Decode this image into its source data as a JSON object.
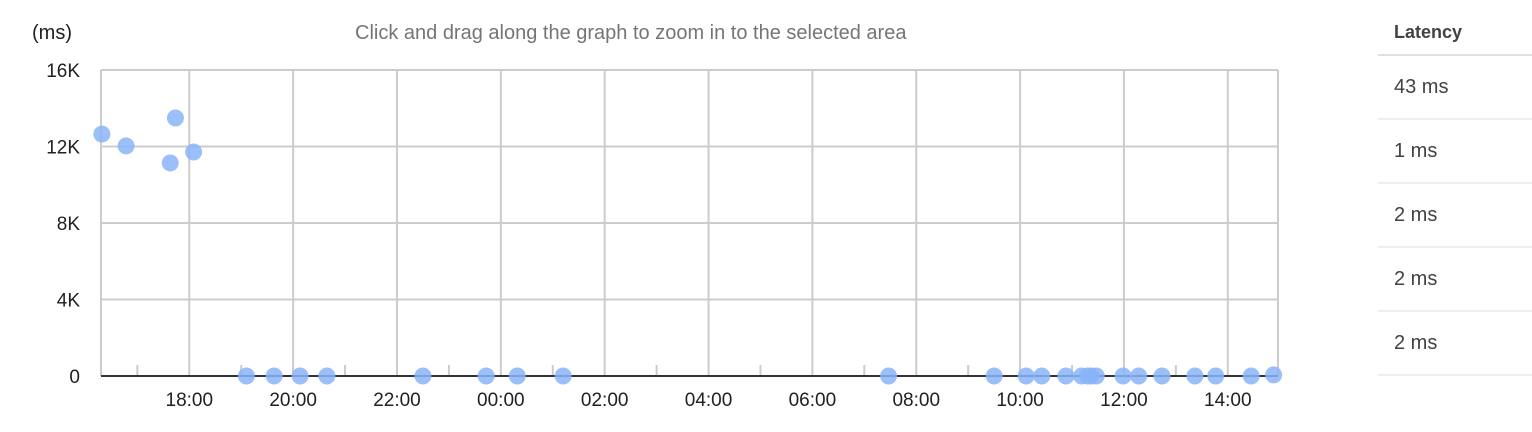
{
  "hint": "Click and drag along the graph to zoom in to the selected area",
  "table": {
    "header": "Latency",
    "rows": [
      "43 ms",
      "1 ms",
      "2 ms",
      "2 ms",
      "2 ms"
    ]
  },
  "chart_data": {
    "type": "scatter",
    "ylabel": "(ms)",
    "ylim": [
      0,
      16000
    ],
    "yticks": [
      {
        "v": 0,
        "label": "0"
      },
      {
        "v": 4000,
        "label": "4K"
      },
      {
        "v": 8000,
        "label": "8K"
      },
      {
        "v": 12000,
        "label": "12K"
      },
      {
        "v": 16000,
        "label": "16K"
      }
    ],
    "xlim": [
      "16:18",
      "14:58"
    ],
    "xticks": [
      "18:00",
      "20:00",
      "22:00",
      "00:00",
      "02:00",
      "04:00",
      "06:00",
      "08:00",
      "10:00",
      "12:00",
      "14:00"
    ],
    "grid": true,
    "color": "#8ab4f8",
    "points": [
      [
        "16:19",
        12650
      ],
      [
        "16:47",
        12030
      ],
      [
        "17:38",
        11140
      ],
      [
        "17:44",
        13490
      ],
      [
        "18:05",
        11710
      ],
      [
        "19:06",
        0
      ],
      [
        "19:38",
        0
      ],
      [
        "20:08",
        0
      ],
      [
        "20:39",
        0
      ],
      [
        "22:30",
        0
      ],
      [
        "23:43",
        0
      ],
      [
        "00:19",
        0
      ],
      [
        "01:12",
        0
      ],
      [
        "07:28",
        0
      ],
      [
        "09:30",
        0
      ],
      [
        "10:07",
        0
      ],
      [
        "10:25",
        0
      ],
      [
        "10:53",
        0
      ],
      [
        "11:11",
        0
      ],
      [
        "11:18",
        0
      ],
      [
        "11:22",
        0
      ],
      [
        "11:28",
        0
      ],
      [
        "11:59",
        0
      ],
      [
        "12:17",
        0
      ],
      [
        "12:44",
        0
      ],
      [
        "13:22",
        0
      ],
      [
        "13:46",
        0
      ],
      [
        "14:27",
        0
      ],
      [
        "14:53",
        60
      ]
    ]
  }
}
